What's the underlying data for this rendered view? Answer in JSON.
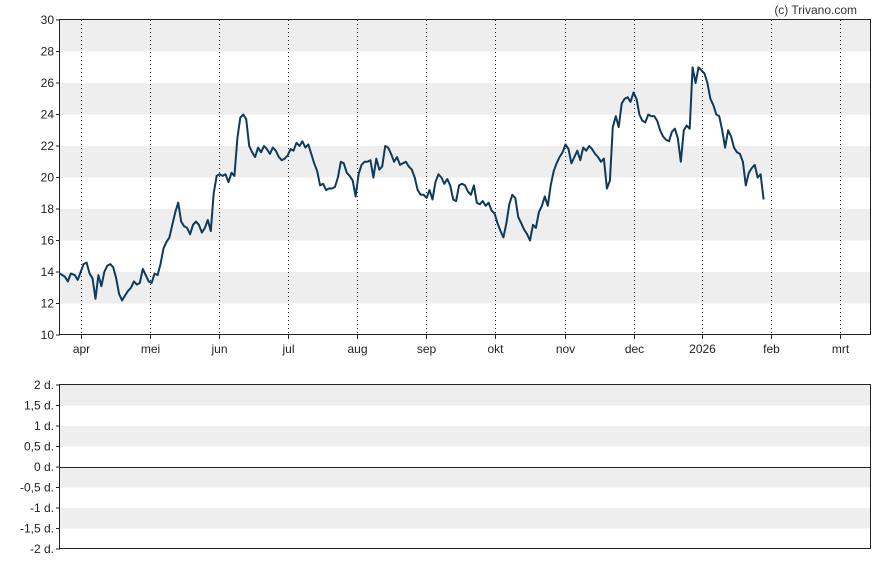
{
  "copyright": "(c) Trivano.com",
  "colors": {
    "line": "#0e3a5c",
    "band": "#eeeeee",
    "vgrid": "#222222",
    "frame": "#222222"
  },
  "chart_data": [
    {
      "type": "line",
      "title": "",
      "ylim": [
        10,
        30
      ],
      "y_ticks": [
        "10",
        "12",
        "14",
        "16",
        "18",
        "20",
        "22",
        "24",
        "26",
        "28",
        "30"
      ],
      "x_months": [
        {
          "label": "apr",
          "day": 21
        },
        {
          "label": "mei",
          "day": 91
        },
        {
          "label": "jun",
          "day": 161
        },
        {
          "label": "jul",
          "day": 231
        },
        {
          "label": "aug",
          "day": 301
        },
        {
          "label": "sep",
          "day": 371
        },
        {
          "label": "okt",
          "day": 441
        },
        {
          "label": "nov",
          "day": 512
        },
        {
          "label": "dec",
          "day": 582
        },
        {
          "label": "2026",
          "day": 652
        },
        {
          "label": "feb",
          "day": 722
        },
        {
          "label": "mrt",
          "day": 792
        }
      ],
      "x_range": [
        0,
        822
      ],
      "grid": "horizontal-bands-and-dotted-vertical",
      "series": [
        {
          "points": [
            [
              0,
              13.9
            ],
            [
              5,
              13.7
            ],
            [
              8,
              13.4
            ],
            [
              11,
              13.9
            ],
            [
              15,
              13.8
            ],
            [
              18,
              13.5
            ],
            [
              21,
              14.0
            ],
            [
              24,
              14.5
            ],
            [
              27,
              14.6
            ],
            [
              30,
              13.9
            ],
            [
              33,
              13.6
            ],
            [
              36,
              12.3
            ],
            [
              39,
              13.8
            ],
            [
              42,
              13.1
            ],
            [
              45,
              14.0
            ],
            [
              48,
              14.4
            ],
            [
              51,
              14.5
            ],
            [
              54,
              14.3
            ],
            [
              57,
              13.6
            ],
            [
              60,
              12.6
            ],
            [
              63,
              12.2
            ],
            [
              66,
              12.5
            ],
            [
              69,
              12.8
            ],
            [
              72,
              13.0
            ],
            [
              75,
              13.4
            ],
            [
              78,
              13.2
            ],
            [
              81,
              13.3
            ],
            [
              84,
              14.2
            ],
            [
              87,
              13.8
            ],
            [
              90,
              13.4
            ],
            [
              93,
              13.3
            ],
            [
              96,
              13.9
            ],
            [
              99,
              13.8
            ],
            [
              102,
              14.5
            ],
            [
              105,
              15.5
            ],
            [
              108,
              15.9
            ],
            [
              111,
              16.2
            ],
            [
              114,
              17.0
            ],
            [
              117,
              17.8
            ],
            [
              120,
              18.4
            ],
            [
              123,
              17.2
            ],
            [
              126,
              16.9
            ],
            [
              129,
              16.8
            ],
            [
              132,
              16.4
            ],
            [
              135,
              17.0
            ],
            [
              138,
              17.2
            ],
            [
              141,
              17.0
            ],
            [
              144,
              16.5
            ],
            [
              147,
              16.8
            ],
            [
              150,
              17.3
            ],
            [
              153,
              16.6
            ],
            [
              156,
              19.0
            ],
            [
              159,
              20.1
            ],
            [
              162,
              20.2
            ],
            [
              165,
              20.1
            ],
            [
              168,
              20.2
            ],
            [
              171,
              19.7
            ],
            [
              174,
              20.3
            ],
            [
              177,
              20.1
            ],
            [
              180,
              22.5
            ],
            [
              183,
              23.8
            ],
            [
              186,
              24.0
            ],
            [
              189,
              23.7
            ],
            [
              192,
              22.0
            ],
            [
              195,
              21.6
            ],
            [
              198,
              21.3
            ],
            [
              201,
              21.9
            ],
            [
              204,
              21.6
            ],
            [
              207,
              22.0
            ],
            [
              210,
              21.8
            ],
            [
              213,
              21.5
            ],
            [
              216,
              21.9
            ],
            [
              219,
              21.7
            ],
            [
              222,
              21.3
            ],
            [
              225,
              21.1
            ],
            [
              228,
              21.2
            ],
            [
              231,
              21.4
            ],
            [
              234,
              21.8
            ],
            [
              237,
              21.7
            ],
            [
              240,
              22.2
            ],
            [
              243,
              22.0
            ],
            [
              246,
              22.3
            ],
            [
              249,
              21.9
            ],
            [
              252,
              22.1
            ],
            [
              255,
              21.5
            ],
            [
              258,
              20.9
            ],
            [
              261,
              20.4
            ],
            [
              264,
              19.5
            ],
            [
              267,
              19.6
            ],
            [
              270,
              19.2
            ],
            [
              273,
              19.3
            ],
            [
              276,
              19.3
            ],
            [
              279,
              19.4
            ],
            [
              282,
              20.0
            ],
            [
              285,
              21.0
            ],
            [
              288,
              20.9
            ],
            [
              291,
              20.3
            ],
            [
              294,
              20.1
            ],
            [
              297,
              19.8
            ],
            [
              300,
              18.8
            ],
            [
              303,
              20.2
            ],
            [
              306,
              20.8
            ],
            [
              309,
              21.0
            ],
            [
              312,
              21.0
            ],
            [
              315,
              21.1
            ],
            [
              318,
              20.0
            ],
            [
              321,
              21.2
            ],
            [
              324,
              20.5
            ],
            [
              327,
              20.7
            ],
            [
              330,
              22.0
            ],
            [
              333,
              21.9
            ],
            [
              336,
              21.5
            ],
            [
              339,
              21.0
            ],
            [
              342,
              21.3
            ],
            [
              345,
              20.8
            ],
            [
              348,
              20.9
            ],
            [
              351,
              21.0
            ],
            [
              354,
              20.7
            ],
            [
              357,
              20.5
            ],
            [
              360,
              20.0
            ],
            [
              363,
              19.2
            ],
            [
              366,
              18.9
            ],
            [
              369,
              18.9
            ],
            [
              372,
              18.7
            ],
            [
              375,
              19.2
            ],
            [
              378,
              18.6
            ],
            [
              381,
              19.7
            ],
            [
              384,
              20.2
            ],
            [
              387,
              20.0
            ],
            [
              390,
              19.6
            ],
            [
              393,
              19.9
            ],
            [
              396,
              19.5
            ],
            [
              399,
              18.6
            ],
            [
              402,
              18.5
            ],
            [
              405,
              19.5
            ],
            [
              408,
              19.6
            ],
            [
              411,
              19.5
            ],
            [
              414,
              19.1
            ],
            [
              417,
              18.9
            ],
            [
              420,
              19.5
            ],
            [
              423,
              18.4
            ],
            [
              426,
              18.3
            ],
            [
              429,
              18.5
            ],
            [
              432,
              18.2
            ],
            [
              435,
              18.4
            ],
            [
              438,
              17.9
            ],
            [
              441,
              17.7
            ],
            [
              444,
              17.1
            ],
            [
              447,
              16.6
            ],
            [
              450,
              16.2
            ],
            [
              453,
              17.1
            ],
            [
              456,
              18.3
            ],
            [
              459,
              18.9
            ],
            [
              462,
              18.7
            ],
            [
              465,
              17.5
            ],
            [
              468,
              17.1
            ],
            [
              471,
              16.7
            ],
            [
              474,
              16.4
            ],
            [
              477,
              16.0
            ],
            [
              480,
              17.0
            ],
            [
              483,
              16.8
            ],
            [
              486,
              17.8
            ],
            [
              489,
              18.2
            ],
            [
              492,
              18.8
            ],
            [
              495,
              18.2
            ],
            [
              498,
              19.5
            ],
            [
              501,
              20.4
            ],
            [
              504,
              20.9
            ],
            [
              507,
              21.3
            ],
            [
              510,
              21.6
            ],
            [
              513,
              22.1
            ],
            [
              516,
              21.8
            ],
            [
              519,
              20.9
            ],
            [
              522,
              21.3
            ],
            [
              525,
              21.7
            ],
            [
              528,
              21.1
            ],
            [
              531,
              21.9
            ],
            [
              534,
              21.7
            ],
            [
              537,
              22.0
            ],
            [
              540,
              21.8
            ],
            [
              543,
              21.5
            ],
            [
              546,
              21.3
            ],
            [
              549,
              21.0
            ],
            [
              552,
              21.2
            ],
            [
              555,
              19.3
            ],
            [
              558,
              19.8
            ],
            [
              561,
              23.2
            ],
            [
              564,
              23.9
            ],
            [
              567,
              23.2
            ],
            [
              570,
              24.7
            ],
            [
              573,
              25.0
            ],
            [
              576,
              25.1
            ],
            [
              579,
              24.8
            ],
            [
              582,
              25.4
            ],
            [
              585,
              25.0
            ],
            [
              588,
              24.0
            ],
            [
              591,
              23.6
            ],
            [
              594,
              23.5
            ],
            [
              597,
              24.0
            ],
            [
              600,
              23.9
            ],
            [
              603,
              23.9
            ],
            [
              606,
              23.6
            ],
            [
              609,
              23.0
            ],
            [
              612,
              22.6
            ],
            [
              615,
              22.4
            ],
            [
              618,
              22.3
            ],
            [
              621,
              22.9
            ],
            [
              624,
              23.1
            ],
            [
              627,
              22.5
            ],
            [
              630,
              21.0
            ],
            [
              633,
              23.0
            ],
            [
              636,
              23.3
            ],
            [
              639,
              23.1
            ],
            [
              642,
              27.0
            ],
            [
              645,
              26.0
            ],
            [
              648,
              27.0
            ],
            [
              651,
              26.8
            ],
            [
              654,
              26.6
            ],
            [
              657,
              26.0
            ],
            [
              660,
              25.0
            ],
            [
              663,
              24.6
            ],
            [
              666,
              24.0
            ],
            [
              669,
              23.9
            ],
            [
              672,
              23.0
            ],
            [
              675,
              21.9
            ],
            [
              678,
              23.0
            ],
            [
              681,
              22.6
            ],
            [
              684,
              21.9
            ],
            [
              687,
              21.6
            ],
            [
              690,
              21.5
            ],
            [
              693,
              21.0
            ],
            [
              696,
              19.5
            ],
            [
              699,
              20.3
            ],
            [
              702,
              20.6
            ],
            [
              705,
              20.8
            ],
            [
              708,
              20.0
            ],
            [
              711,
              20.2
            ],
            [
              714,
              18.6
            ]
          ]
        }
      ]
    },
    {
      "type": "line",
      "title": "",
      "ylim": [
        -2,
        2
      ],
      "y_ticks": [
        "-2 d.",
        "-1,5 d.",
        "-1 d.",
        "-0,5 d.",
        "0 d.",
        "0,5 d.",
        "1 d.",
        "1,5 d.",
        "2 d."
      ],
      "zero_line": 0,
      "series": []
    }
  ]
}
